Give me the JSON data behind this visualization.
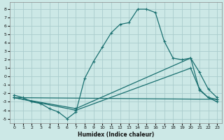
{
  "xlabel": "Humidex (Indice chaleur)",
  "bg_color": "#cce8e6",
  "grid_color": "#aacccc",
  "line_color": "#1a7070",
  "xlim": [
    -0.5,
    23.5
  ],
  "ylim": [
    -5.5,
    8.8
  ],
  "xticks": [
    0,
    1,
    2,
    3,
    4,
    5,
    6,
    7,
    8,
    9,
    10,
    11,
    12,
    13,
    14,
    15,
    16,
    17,
    18,
    19,
    20,
    21,
    22,
    23
  ],
  "yticks": [
    -5,
    -4,
    -3,
    -2,
    -1,
    0,
    1,
    2,
    3,
    4,
    5,
    6,
    7,
    8
  ],
  "line1_x": [
    0,
    1,
    2,
    3,
    4,
    5,
    6,
    7,
    8,
    9,
    10,
    11,
    12,
    13,
    14,
    15,
    16,
    17,
    18,
    19,
    20,
    21,
    22,
    23
  ],
  "line1_y": [
    -2.2,
    -2.5,
    -3.0,
    -3.2,
    -3.8,
    -4.2,
    -5.0,
    -4.2,
    -0.2,
    1.8,
    3.5,
    5.2,
    6.2,
    6.4,
    8.0,
    8.0,
    7.6,
    4.2,
    2.2,
    2.0,
    2.2,
    -1.6,
    -2.5,
    -2.7
  ],
  "line2_x": [
    0,
    23
  ],
  "line2_y": [
    -2.5,
    -2.7
  ],
  "line3_x": [
    0,
    7,
    20,
    21,
    22,
    23
  ],
  "line3_y": [
    -2.5,
    -3.8,
    2.2,
    0.5,
    -1.5,
    -2.5
  ],
  "line4_x": [
    0,
    7,
    20,
    21,
    22,
    23
  ],
  "line4_y": [
    -2.5,
    -4.0,
    1.0,
    -1.5,
    -2.5,
    -3.0
  ]
}
